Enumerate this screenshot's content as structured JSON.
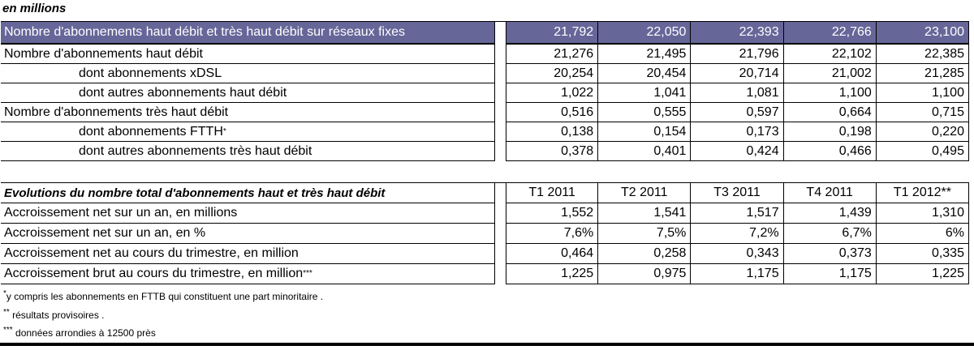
{
  "caption": "en millions",
  "colors": {
    "header_bg": "#666699",
    "header_text": "#ffffff",
    "border": "#000000"
  },
  "table1": {
    "header": {
      "label": "Nombre d'abonnements haut débit et très haut débit sur réseaux fixes",
      "values": [
        "21,792",
        "22,050",
        "22,393",
        "22,766",
        "23,100"
      ]
    },
    "rows": [
      {
        "label": "Nombre d'abonnements haut débit",
        "values": [
          "21,276",
          "21,495",
          "21,796",
          "22,102",
          "22,385"
        ]
      },
      {
        "label": "dont abonnements xDSL",
        "values": [
          "20,254",
          "20,454",
          "20,714",
          "21,002",
          "21,285"
        ]
      },
      {
        "label": "dont autres abonnements haut débit",
        "values": [
          "1,022",
          "1,041",
          "1,081",
          "1,100",
          "1,100"
        ]
      },
      {
        "label": "Nombre d'abonnements très haut débit",
        "values": [
          "0,516",
          "0,555",
          "0,597",
          "0,664",
          "0,715"
        ]
      },
      {
        "label": "dont abonnements FTTH",
        "label_sup": "*",
        "values": [
          "0,138",
          "0,154",
          "0,173",
          "0,198",
          "0,220"
        ]
      },
      {
        "label": "dont autres abonnements très haut débit",
        "values": [
          "0,378",
          "0,401",
          "0,424",
          "0,466",
          "0,495"
        ]
      }
    ]
  },
  "table2": {
    "header": {
      "label": "Evolutions du nombre total d'abonnements haut et très haut débit",
      "columns": [
        "T1 2011",
        "T2 2011",
        "T3 2011",
        "T4 2011",
        "T1 2012**"
      ]
    },
    "rows": [
      {
        "label": "Accroissement net sur un an, en millions",
        "values": [
          "1,552",
          "1,541",
          "1,517",
          "1,439",
          "1,310"
        ]
      },
      {
        "label": "Accroissement net sur un an, en %",
        "values": [
          "7,6%",
          "7,5%",
          "7,2%",
          "6,7%",
          "6%"
        ]
      },
      {
        "label": "Accroissement net au cours du trimestre, en million",
        "values": [
          "0,464",
          "0,258",
          "0,343",
          "0,373",
          "0,335"
        ]
      },
      {
        "label": "Accroissement brut au cours du trimestre, en million",
        "label_sup": "***",
        "values": [
          "1,225",
          "0,975",
          "1,175",
          "1,175",
          "1,225"
        ]
      }
    ]
  },
  "footnotes": [
    {
      "marker": "*",
      "text": "y compris les abonnements en FTTB qui constituent une part minoritaire ."
    },
    {
      "marker": "**",
      "text": " résultats provisoires ."
    },
    {
      "marker": "***",
      "text": " données arrondies à 12500 près"
    }
  ],
  "chart_data": [
    {
      "type": "table",
      "title": "Nombre d'abonnements haut débit et très haut débit sur réseaux fixes (en millions)",
      "rows": [
        {
          "label": "Nombre d'abonnements haut débit et très haut débit sur réseaux fixes",
          "values": [
            21.792,
            22.05,
            22.393,
            22.766,
            23.1
          ]
        },
        {
          "label": "Nombre d'abonnements haut débit",
          "values": [
            21.276,
            21.495,
            21.796,
            22.102,
            22.385
          ]
        },
        {
          "label": "dont abonnements xDSL",
          "values": [
            20.254,
            20.454,
            20.714,
            21.002,
            21.285
          ]
        },
        {
          "label": "dont autres abonnements haut débit",
          "values": [
            1.022,
            1.041,
            1.081,
            1.1,
            1.1
          ]
        },
        {
          "label": "Nombre d'abonnements très haut débit",
          "values": [
            0.516,
            0.555,
            0.597,
            0.664,
            0.715
          ]
        },
        {
          "label": "dont abonnements FTTH*",
          "values": [
            0.138,
            0.154,
            0.173,
            0.198,
            0.22
          ]
        },
        {
          "label": "dont autres abonnements très haut débit",
          "values": [
            0.378,
            0.401,
            0.424,
            0.466,
            0.495
          ]
        }
      ]
    },
    {
      "type": "table",
      "title": "Evolutions du nombre total d'abonnements haut et très haut débit",
      "columns": [
        "T1 2011",
        "T2 2011",
        "T3 2011",
        "T4 2011",
        "T1 2012**"
      ],
      "rows": [
        {
          "label": "Accroissement net sur un an, en millions",
          "values": [
            1.552,
            1.541,
            1.517,
            1.439,
            1.31
          ]
        },
        {
          "label": "Accroissement net sur un an, en %",
          "values": [
            "7,6%",
            "7,5%",
            "7,2%",
            "6,7%",
            "6%"
          ]
        },
        {
          "label": "Accroissement net au cours du trimestre, en million",
          "values": [
            0.464,
            0.258,
            0.343,
            0.373,
            0.335
          ]
        },
        {
          "label": "Accroissement brut au cours du trimestre, en million***",
          "values": [
            1.225,
            0.975,
            1.175,
            1.175,
            1.225
          ]
        }
      ]
    }
  ]
}
